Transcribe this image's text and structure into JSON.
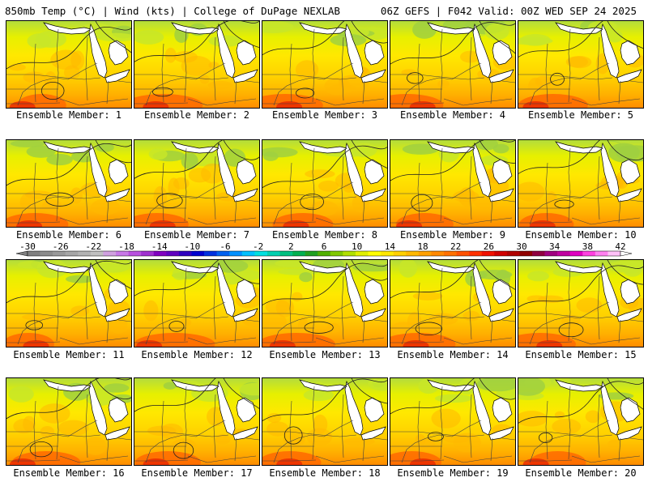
{
  "header": {
    "left": "850mb Temp (°C) | Wind (kts) | College of DuPage NEXLAB",
    "right": "06Z GEFS | F042 Valid: 00Z WED SEP 24 2025"
  },
  "panels": [
    {
      "label": "Ensemble Member: 1"
    },
    {
      "label": "Ensemble Member: 2"
    },
    {
      "label": "Ensemble Member: 3"
    },
    {
      "label": "Ensemble Member: 4"
    },
    {
      "label": "Ensemble Member: 5"
    },
    {
      "label": "Ensemble Member: 6"
    },
    {
      "label": "Ensemble Member: 7"
    },
    {
      "label": "Ensemble Member: 8"
    },
    {
      "label": "Ensemble Member: 9"
    },
    {
      "label": "Ensemble Member: 10"
    },
    {
      "label": "Ensemble Member: 11"
    },
    {
      "label": "Ensemble Member: 12"
    },
    {
      "label": "Ensemble Member: 13"
    },
    {
      "label": "Ensemble Member: 14"
    },
    {
      "label": "Ensemble Member: 15"
    },
    {
      "label": "Ensemble Member: 16"
    },
    {
      "label": "Ensemble Member: 17"
    },
    {
      "label": "Ensemble Member: 18"
    },
    {
      "label": "Ensemble Member: 19"
    },
    {
      "label": "Ensemble Member: 20"
    }
  ],
  "colorbar": {
    "labels": [
      "-30",
      "-26",
      "-22",
      "-18",
      "-14",
      "-10",
      "-6",
      "-2",
      "2",
      "6",
      "10",
      "14",
      "18",
      "22",
      "26",
      "30",
      "34",
      "38",
      "42"
    ],
    "colors": [
      "#808080",
      "#8c8c8c",
      "#999999",
      "#a6a6a6",
      "#b3b3b3",
      "#c0c0c0",
      "#d0a0e0",
      "#c878e8",
      "#b850e0",
      "#a030d0",
      "#8000c0",
      "#6000c0",
      "#3000c0",
      "#0000d0",
      "#0030e0",
      "#0060f0",
      "#0090ff",
      "#00c0ff",
      "#00e0e0",
      "#00d0b0",
      "#00c080",
      "#00b050",
      "#20a020",
      "#50b000",
      "#80c800",
      "#b0e000",
      "#e0f000",
      "#ffff00",
      "#ffe800",
      "#ffd000",
      "#ffb800",
      "#ffa000",
      "#ff8800",
      "#ff7000",
      "#ff5000",
      "#ff3000",
      "#f01000",
      "#d00000",
      "#b00000",
      "#900000",
      "#900040",
      "#a00080",
      "#c000a0",
      "#e000c0",
      "#ff40e0",
      "#ff80f0",
      "#ffc0f8"
    ]
  }
}
